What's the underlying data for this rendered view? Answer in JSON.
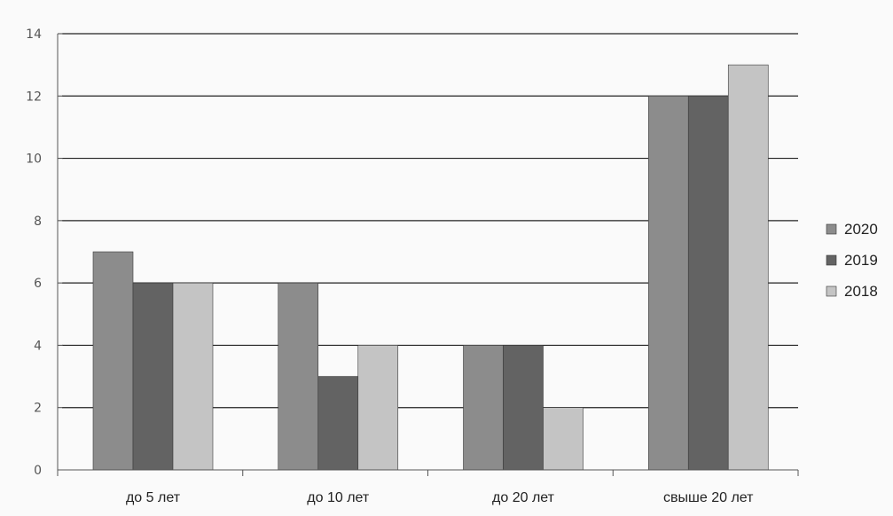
{
  "chart_data": {
    "type": "bar",
    "categories": [
      "до 5 лет",
      "до 10 лет",
      "до 20 лет",
      "свыше 20 лет"
    ],
    "series": [
      {
        "name": "2020",
        "values": [
          7,
          6,
          4,
          12
        ],
        "color": "#8c8c8c"
      },
      {
        "name": "2019",
        "values": [
          6,
          3,
          4,
          12
        ],
        "color": "#636363"
      },
      {
        "name": "2018",
        "values": [
          6,
          4,
          2,
          13
        ],
        "color": "#c4c4c4"
      }
    ],
    "ylim": [
      0,
      14
    ],
    "yticks": [
      "0",
      "2",
      "4",
      "6",
      "8",
      "10",
      "12",
      "14"
    ],
    "grid": true,
    "legend_position": "right"
  }
}
